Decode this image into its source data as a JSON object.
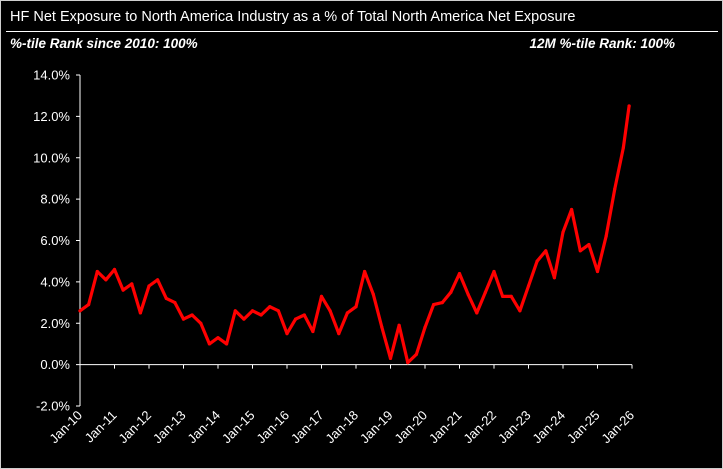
{
  "header": {
    "title": "HF Net Exposure to North America Industry as a % of Total North America Net Exposure",
    "left_label": "%-tile Rank since 2010: 100%",
    "right_label": "12M %-tile Rank: 100%"
  },
  "chart_data": {
    "type": "line",
    "title": "HF Net Exposure to North America Industry as a % of Total North America Net Exposure",
    "xlabel": "",
    "ylabel": "",
    "ylim": [
      -2,
      14
    ],
    "y_ticks": [
      "-2.0%",
      "0.0%",
      "2.0%",
      "4.0%",
      "6.0%",
      "8.0%",
      "10.0%",
      "12.0%",
      "14.0%"
    ],
    "x_ticks": [
      "Jan-10",
      "Jan-11",
      "Jan-12",
      "Jan-13",
      "Jan-14",
      "Jan-15",
      "Jan-16",
      "Jan-17",
      "Jan-18",
      "Jan-19",
      "Jan-20",
      "Jan-21",
      "Jan-22",
      "Jan-23",
      "Jan-24",
      "Jan-25",
      "Jan-26"
    ],
    "grid": false,
    "series": [
      {
        "color": "#ff0000",
        "x": [
          "2010-01",
          "2010-04",
          "2010-07",
          "2010-10",
          "2011-01",
          "2011-04",
          "2011-07",
          "2011-10",
          "2012-01",
          "2012-04",
          "2012-07",
          "2012-10",
          "2013-01",
          "2013-04",
          "2013-07",
          "2013-10",
          "2014-01",
          "2014-04",
          "2014-07",
          "2014-10",
          "2015-01",
          "2015-04",
          "2015-07",
          "2015-10",
          "2016-01",
          "2016-04",
          "2016-07",
          "2016-10",
          "2017-01",
          "2017-04",
          "2017-07",
          "2017-10",
          "2018-01",
          "2018-04",
          "2018-07",
          "2018-10",
          "2019-01",
          "2019-04",
          "2019-07",
          "2019-10",
          "2020-01",
          "2020-04",
          "2020-07",
          "2020-10",
          "2021-01",
          "2021-04",
          "2021-07",
          "2021-10",
          "2022-01",
          "2022-04",
          "2022-07",
          "2022-10",
          "2023-01",
          "2023-04",
          "2023-07",
          "2023-10",
          "2024-01",
          "2024-04",
          "2024-07",
          "2024-10",
          "2025-01",
          "2025-04",
          "2025-07",
          "2025-10",
          "2025-12"
        ],
        "values": [
          2.6,
          2.9,
          4.5,
          4.1,
          4.6,
          3.6,
          3.9,
          2.5,
          3.8,
          4.1,
          3.2,
          3.0,
          2.2,
          2.4,
          2.0,
          1.0,
          1.3,
          1.0,
          2.6,
          2.2,
          2.6,
          2.4,
          2.8,
          2.6,
          1.5,
          2.2,
          2.4,
          1.6,
          3.3,
          2.6,
          1.5,
          2.5,
          2.8,
          4.5,
          3.4,
          1.8,
          0.3,
          1.9,
          0.1,
          0.5,
          1.8,
          2.9,
          3.0,
          3.5,
          4.4,
          3.4,
          2.5,
          3.5,
          4.5,
          3.3,
          3.3,
          2.6,
          3.8,
          5.0,
          5.5,
          4.2,
          6.4,
          7.5,
          5.5,
          5.8,
          4.5,
          6.2,
          8.5,
          10.5,
          12.5
        ]
      }
    ]
  }
}
